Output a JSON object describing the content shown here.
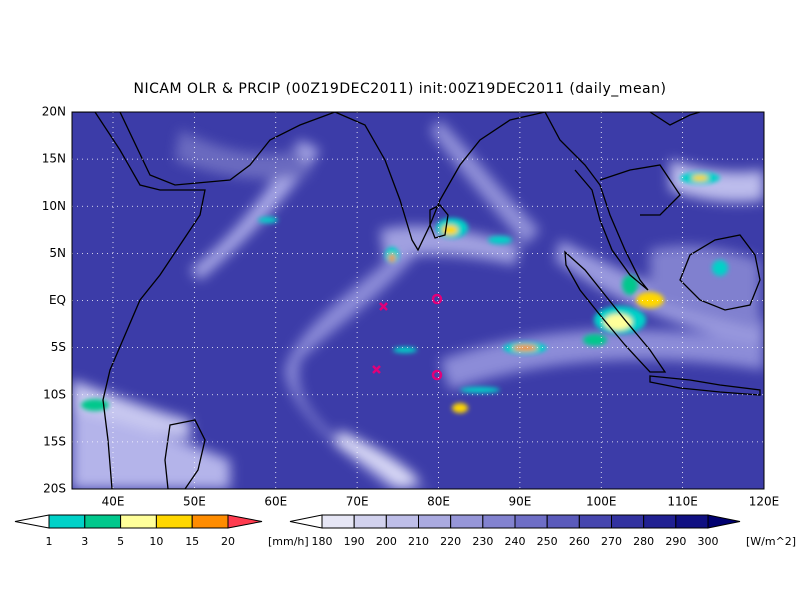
{
  "title": "NICAM OLR & PRCIP (00Z19DEC2011) init:00Z19DEC2011 (daily_mean)",
  "lat_labels": [
    "20N",
    "15N",
    "10N",
    "5N",
    "EQ",
    "5S",
    "10S",
    "15S",
    "20S"
  ],
  "lon_labels": [
    "40E",
    "50E",
    "60E",
    "70E",
    "80E",
    "90E",
    "100E",
    "110E",
    "120E"
  ],
  "precip_legend": {
    "labels": [
      "1",
      "3",
      "5",
      "10",
      "15",
      "20"
    ],
    "unit": "[mm/h]",
    "colors": [
      "#ffffff",
      "#00d2c8",
      "#00c88c",
      "#ffff9a",
      "#ffd700",
      "#ff8c00",
      "#ff3c50"
    ]
  },
  "olr_legend": {
    "labels": [
      "180",
      "190",
      "200",
      "210",
      "220",
      "230",
      "240",
      "250",
      "260",
      "270",
      "280",
      "290",
      "300"
    ],
    "unit": "[W/m^2]",
    "colors": [
      "#ffffff",
      "#e6e6f5",
      "#d2d2ee",
      "#bebee8",
      "#aaaae0",
      "#9696d8",
      "#8282cf",
      "#6e6ec6",
      "#5a5abb",
      "#4646ae",
      "#3232a0",
      "#202092",
      "#101082",
      "#000070"
    ]
  }
}
